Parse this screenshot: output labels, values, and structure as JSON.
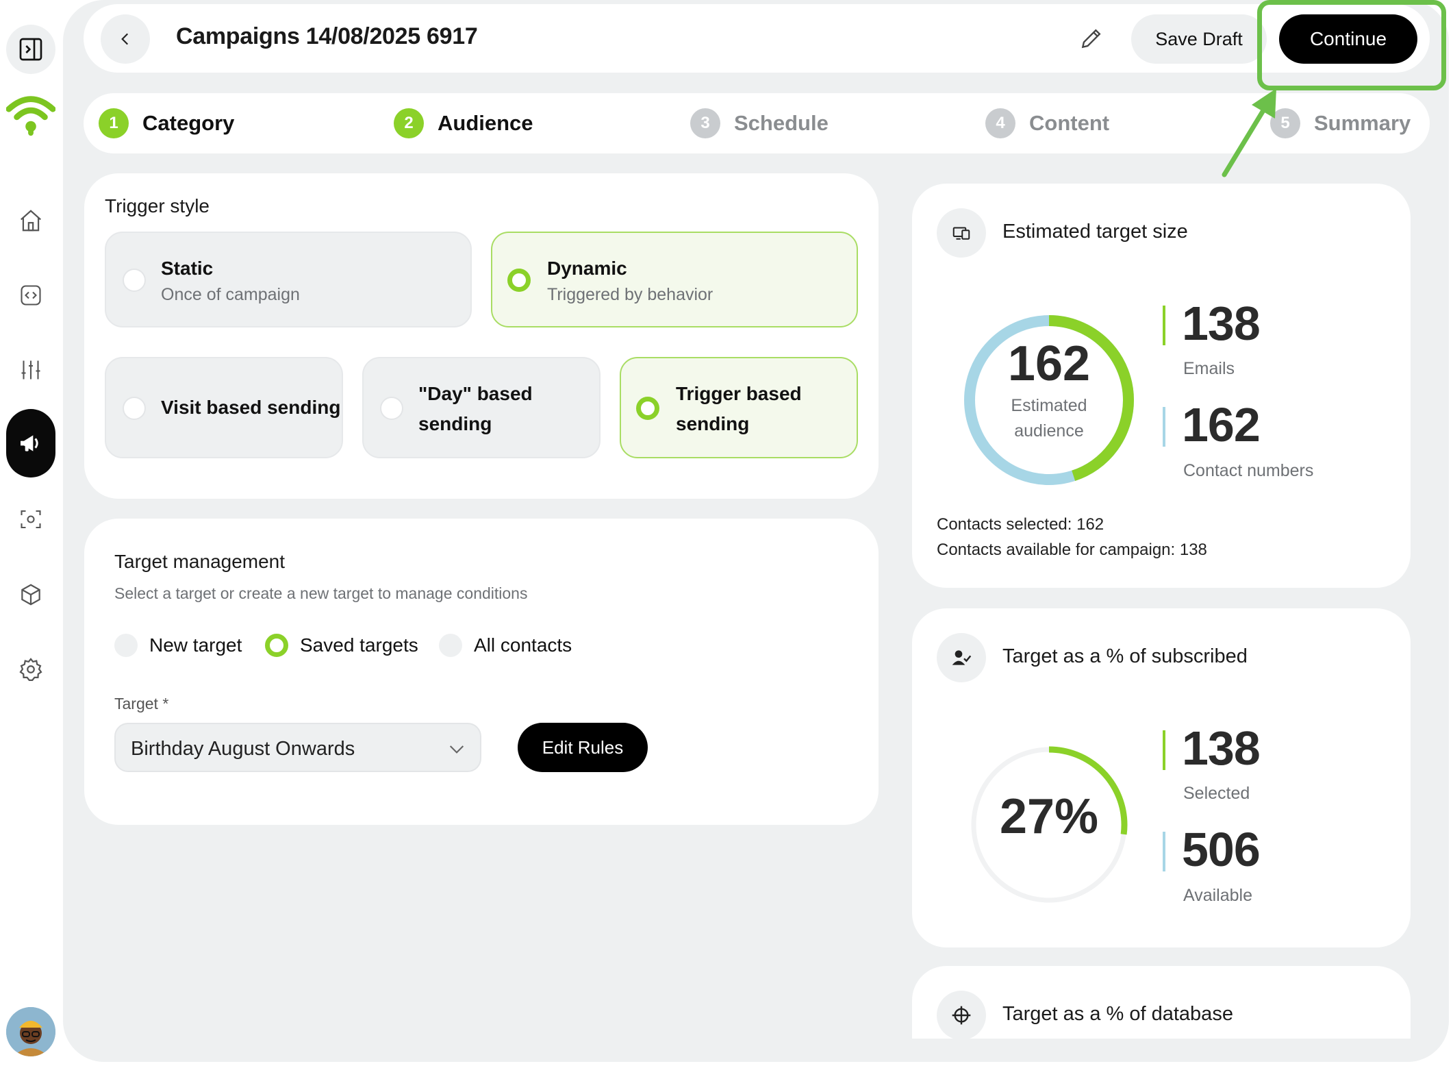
{
  "header": {
    "title": "Campaigns 14/08/2025 6917",
    "save_draft": "Save Draft",
    "continue": "Continue"
  },
  "steps": [
    {
      "num": "1",
      "label": "Category",
      "state": "done"
    },
    {
      "num": "2",
      "label": "Audience",
      "state": "done"
    },
    {
      "num": "3",
      "label": "Schedule",
      "state": "todo"
    },
    {
      "num": "4",
      "label": "Content",
      "state": "todo"
    },
    {
      "num": "5",
      "label": "Summary",
      "state": "todo"
    }
  ],
  "trigger": {
    "title": "Trigger style",
    "static_title": "Static",
    "static_sub": "Once of campaign",
    "dynamic_title": "Dynamic",
    "dynamic_sub": "Triggered by behavior",
    "visit": "Visit based sending",
    "day": "\"Day\" based sending",
    "trig": "Trigger based sending",
    "selected_style": "Dynamic",
    "selected_mode": "Trigger based sending"
  },
  "target": {
    "title": "Target management",
    "subtitle": "Select a target or create a new target to manage conditions",
    "options": [
      "New target",
      "Saved targets",
      "All contacts"
    ],
    "selected": "Saved targets",
    "field_label": "Target *",
    "field_value": "Birthday August Onwards",
    "edit_rules": "Edit Rules"
  },
  "estimated": {
    "title": "Estimated target size",
    "center_value": "162",
    "center_label": "Estimated audience",
    "emails_value": "138",
    "emails_label": "Emails",
    "contacts_value": "162",
    "contacts_label": "Contact numbers",
    "contacts_selected": "Contacts selected: 162",
    "contacts_available": "Contacts available for campaign: 138",
    "green_fraction": 0.45
  },
  "subscribed": {
    "title": "Target as a % of subscribed",
    "center_value": "27%",
    "selected_value": "138",
    "selected_label": "Selected",
    "available_value": "506",
    "available_label": "Available",
    "fraction": 0.27
  },
  "database": {
    "title": "Target as a % of database"
  },
  "colors": {
    "accent_green": "#8bd129",
    "ring_blue": "#a7d6e6",
    "highlight": "#6cc04a"
  }
}
